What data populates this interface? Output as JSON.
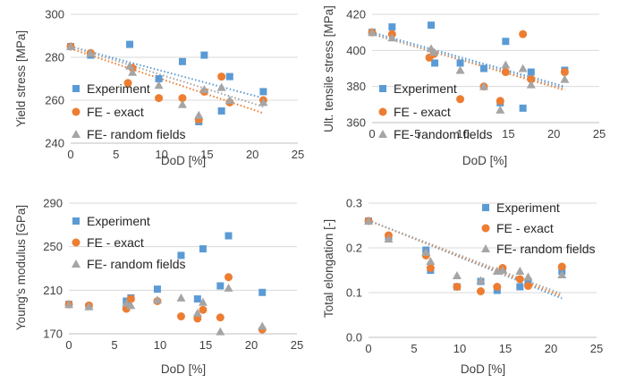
{
  "colors": {
    "experiment": "#5B9BD5",
    "fe_exact": "#ED7D31",
    "fe_random": "#A5A5A5",
    "grid": "#D9D9D9"
  },
  "chart_data": [
    {
      "type": "scatter",
      "xlabel": "DoD [%]",
      "ylabel": "Yield stress [MPa]",
      "xlim": [
        0,
        25
      ],
      "ylim": [
        240,
        300
      ],
      "xticks": [
        "0",
        "5",
        "10",
        "15",
        "20",
        "25"
      ],
      "yticks": [
        "240",
        "260",
        "280",
        "300"
      ],
      "grid": "horizontal",
      "legend_position": "left",
      "series": [
        {
          "name": "Experiment",
          "marker": "square",
          "color": "#5B9BD5",
          "x": [
            0,
            2.2,
            6.5,
            9.7,
            12.3,
            14.1,
            14.7,
            16.6,
            17.5,
            21.2
          ],
          "y": [
            285,
            281,
            286,
            270,
            278,
            250,
            281,
            255,
            271,
            264
          ]
        },
        {
          "name": "FE - exact",
          "marker": "circle",
          "color": "#ED7D31",
          "x": [
            0,
            2.2,
            6.3,
            6.8,
            9.7,
            12.3,
            14.1,
            14.7,
            16.6,
            17.5,
            21.2
          ],
          "y": [
            285,
            282,
            268,
            275,
            261,
            261,
            251,
            264,
            271,
            259,
            260
          ]
        },
        {
          "name": "FE- random fields",
          "marker": "triangle",
          "color": "#A5A5A5",
          "x": [
            0,
            2.2,
            6.5,
            6.8,
            9.7,
            12.3,
            14.1,
            14.7,
            16.6,
            17.5,
            21.2
          ],
          "y": [
            285,
            282,
            276,
            273,
            267,
            258,
            253,
            265,
            266,
            260,
            259
          ]
        }
      ],
      "trendlines": [
        {
          "series": "Experiment",
          "color": "#5B9BD5",
          "x": [
            0,
            21.2
          ],
          "y": [
            285,
            261
          ]
        },
        {
          "series": "FE - exact",
          "color": "#ED7D31",
          "x": [
            0,
            21.2
          ],
          "y": [
            284,
            254
          ]
        },
        {
          "series": "FE- random fields",
          "color": "#A5A5A5",
          "x": [
            0,
            21.2
          ],
          "y": [
            285,
            257
          ]
        }
      ]
    },
    {
      "type": "scatter",
      "xlabel": "DoD [%]",
      "ylabel": "Ult. tensile stress [MPa]",
      "xlim": [
        0,
        25
      ],
      "ylim": [
        360,
        420
      ],
      "xticks": [
        "0",
        "5",
        "10",
        "15",
        "20",
        "25"
      ],
      "yticks": [
        "360",
        "380",
        "400",
        "420"
      ],
      "grid": "horizontal",
      "legend_position": "left",
      "series": [
        {
          "name": "Experiment",
          "marker": "square",
          "color": "#5B9BD5",
          "x": [
            0,
            2.2,
            6.5,
            6.9,
            9.7,
            12.3,
            14.1,
            14.7,
            16.6,
            17.5,
            21.2
          ],
          "y": [
            410,
            413,
            414,
            393,
            393,
            390,
            371,
            405,
            368,
            388,
            389
          ]
        },
        {
          "name": "FE - exact",
          "marker": "circle",
          "color": "#ED7D31",
          "x": [
            0,
            2.2,
            6.3,
            6.8,
            9.7,
            12.3,
            14.1,
            14.7,
            16.6,
            17.5,
            21.2
          ],
          "y": [
            410,
            409,
            396,
            398,
            373,
            380,
            372,
            388,
            409,
            384,
            388
          ]
        },
        {
          "name": "FE- random fields",
          "marker": "triangle",
          "color": "#A5A5A5",
          "x": [
            0,
            2.2,
            6.5,
            6.8,
            9.7,
            12.3,
            14.1,
            14.7,
            16.6,
            17.5,
            21.2
          ],
          "y": [
            410,
            407,
            401,
            399,
            389,
            380,
            367,
            392,
            390,
            381,
            384
          ]
        }
      ],
      "trendlines": [
        {
          "series": "Experiment",
          "color": "#5B9BD5",
          "x": [
            0,
            21.2
          ],
          "y": [
            410,
            380
          ]
        },
        {
          "series": "FE - exact",
          "color": "#ED7D31",
          "x": [
            0,
            21.2
          ],
          "y": [
            409,
            378
          ]
        },
        {
          "series": "FE- random fields",
          "color": "#A5A5A5",
          "x": [
            0,
            21.2
          ],
          "y": [
            409,
            379
          ]
        }
      ]
    },
    {
      "type": "scatter",
      "xlabel": "DoD [%]",
      "ylabel": "Young's modulus [GPa]",
      "xlim": [
        0,
        25
      ],
      "ylim": [
        170,
        290
      ],
      "xticks": [
        "0",
        "5",
        "10",
        "15",
        "20",
        "25"
      ],
      "yticks": [
        "170",
        "210",
        "250",
        "290"
      ],
      "grid": "horizontal",
      "legend_position": "top-left",
      "series": [
        {
          "name": "Experiment",
          "marker": "square",
          "color": "#5B9BD5",
          "x": [
            0,
            2.2,
            6.3,
            6.8,
            9.7,
            12.3,
            14.1,
            14.7,
            16.6,
            17.5,
            21.2
          ],
          "y": [
            197,
            195,
            200,
            203,
            211,
            242,
            202,
            248,
            214,
            260,
            208
          ]
        },
        {
          "name": "FE - exact",
          "marker": "circle",
          "color": "#ED7D31",
          "x": [
            0,
            2.2,
            6.3,
            6.8,
            9.7,
            12.3,
            14.1,
            14.7,
            16.6,
            17.5,
            21.2
          ],
          "y": [
            197,
            196,
            193,
            202,
            200,
            186,
            184,
            192,
            185,
            222,
            174
          ]
        },
        {
          "name": "FE- random fields",
          "marker": "triangle",
          "color": "#A5A5A5",
          "x": [
            0,
            2.2,
            6.3,
            6.8,
            9.7,
            12.3,
            14.1,
            14.7,
            16.6,
            17.5,
            21.2
          ],
          "y": [
            197,
            195,
            198,
            196,
            201,
            203,
            189,
            199,
            172,
            212,
            177
          ]
        }
      ]
    },
    {
      "type": "scatter",
      "xlabel": "DoD [%]",
      "ylabel": "Total elongation [-]",
      "xlim": [
        0,
        25
      ],
      "ylim": [
        0.0,
        0.3
      ],
      "xticks": [
        "0",
        "5",
        "10",
        "15",
        "20",
        "25"
      ],
      "yticks": [
        "0.0",
        "0.1",
        "0.2",
        "0.3"
      ],
      "grid": "horizontal",
      "legend_position": "top-right",
      "series": [
        {
          "name": "Experiment",
          "marker": "square",
          "color": "#5B9BD5",
          "x": [
            0,
            2.2,
            6.3,
            6.8,
            9.7,
            12.3,
            14.1,
            14.7,
            16.6,
            17.5,
            21.2
          ],
          "y": [
            0.26,
            0.225,
            0.195,
            0.15,
            0.113,
            0.125,
            0.105,
            0.15,
            0.113,
            0.125,
            0.148
          ]
        },
        {
          "name": "FE - exact",
          "marker": "circle",
          "color": "#ED7D31",
          "x": [
            0,
            2.2,
            6.3,
            6.8,
            9.7,
            12.3,
            14.1,
            14.7,
            16.6,
            17.5,
            21.2
          ],
          "y": [
            0.26,
            0.228,
            0.183,
            0.155,
            0.113,
            0.103,
            0.113,
            0.155,
            0.13,
            0.115,
            0.158
          ]
        },
        {
          "name": "FE- random fields",
          "marker": "triangle",
          "color": "#A5A5A5",
          "x": [
            0,
            2.2,
            6.3,
            6.8,
            9.7,
            12.3,
            14.1,
            14.7,
            16.6,
            17.5,
            21.2
          ],
          "y": [
            0.26,
            0.22,
            0.19,
            0.17,
            0.138,
            0.127,
            0.148,
            0.15,
            0.148,
            0.135,
            0.14
          ]
        }
      ],
      "trendlines": [
        {
          "series": "Experiment",
          "color": "#5B9BD5",
          "x": [
            0,
            21.2
          ],
          "y": [
            0.262,
            0.087
          ]
        },
        {
          "series": "FE - exact",
          "color": "#ED7D31",
          "x": [
            0,
            21.2
          ],
          "y": [
            0.261,
            0.092
          ]
        },
        {
          "series": "FE- random fields",
          "color": "#A5A5A5",
          "x": [
            0,
            21.2
          ],
          "y": [
            0.261,
            0.097
          ]
        }
      ]
    }
  ]
}
